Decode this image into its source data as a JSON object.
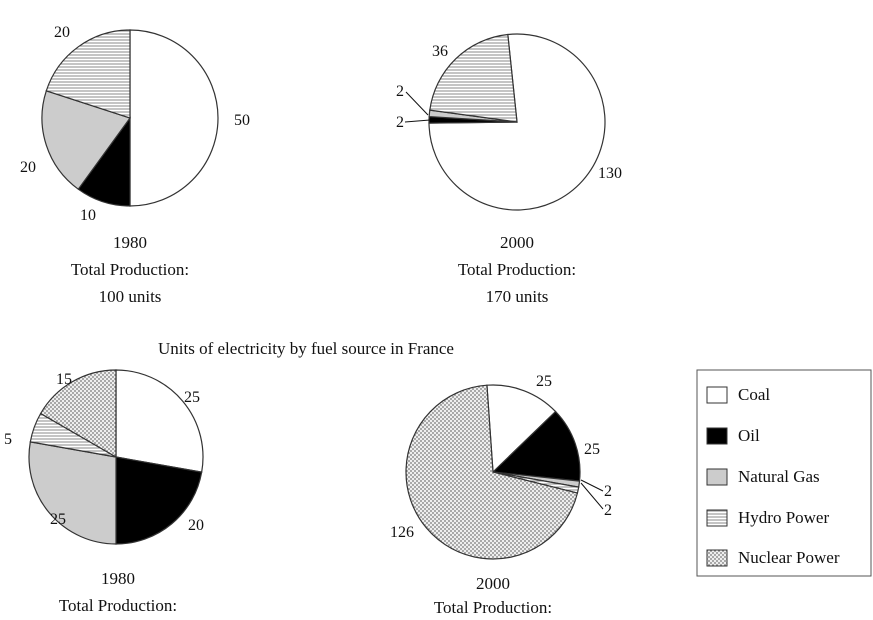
{
  "chart_data": [
    {
      "type": "pie",
      "id": "tl",
      "year": "1980",
      "caption": "Total Production:",
      "total_label": "100 units",
      "categories": [
        "Coal",
        "Oil",
        "Natural Gas",
        "Hydro Power"
      ],
      "values": [
        50,
        10,
        20,
        20
      ]
    },
    {
      "type": "pie",
      "id": "tr",
      "year": "2000",
      "caption": "Total Production:",
      "total_label": "170 units",
      "categories": [
        "Coal",
        "Oil",
        "Natural Gas",
        "Hydro Power"
      ],
      "values": [
        130,
        2,
        2,
        36
      ]
    },
    {
      "type": "pie",
      "id": "bl",
      "title": "Units of electricity by fuel source in France",
      "year": "1980",
      "caption": "Total Production:",
      "categories": [
        "Coal",
        "Oil",
        "Natural Gas",
        "Hydro Power",
        "Nuclear Power"
      ],
      "values": [
        25,
        20,
        25,
        5,
        15
      ]
    },
    {
      "type": "pie",
      "id": "br",
      "year": "2000",
      "caption": "Total Production:",
      "categories": [
        "Coal",
        "Oil",
        "Natural Gas",
        "Hydro Power",
        "Nuclear Power"
      ],
      "values": [
        25,
        25,
        2,
        2,
        126
      ]
    }
  ],
  "legend": {
    "placement": "bottom-right",
    "items": [
      {
        "label": "Coal",
        "fill": "#ffffff"
      },
      {
        "label": "Oil",
        "fill": "#000000"
      },
      {
        "label": "Natural Gas",
        "fill": "#cccccc"
      },
      {
        "label": "Hydro Power",
        "fill": "horizontal-lines"
      },
      {
        "label": "Nuclear Power",
        "fill": "crosshatch"
      }
    ]
  }
}
